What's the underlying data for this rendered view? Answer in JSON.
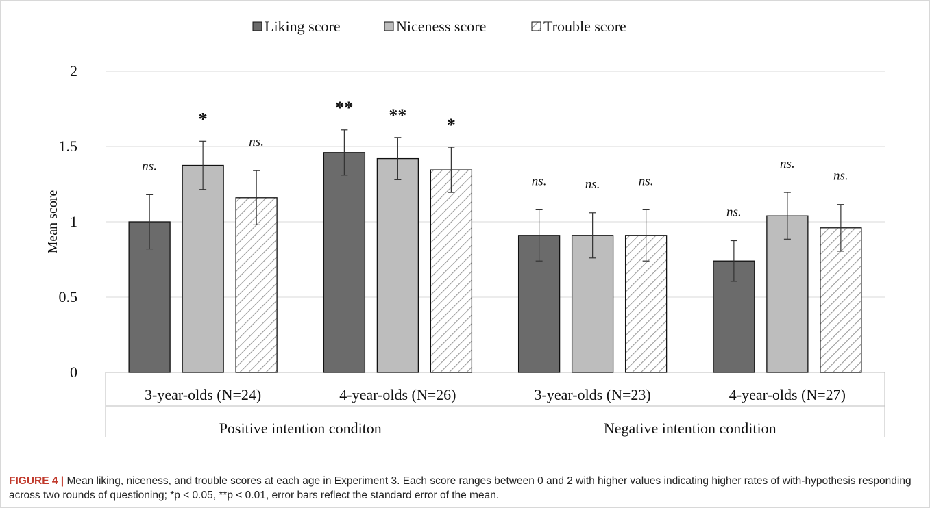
{
  "chart_data": {
    "type": "bar",
    "ylabel": "Mean score",
    "ylim": [
      0,
      2
    ],
    "yticks": [
      "0",
      "0.5",
      "1",
      "1.5",
      "2"
    ],
    "legend_position": "top-center",
    "grid": true,
    "groups": [
      {
        "label": "Positive intention conditon",
        "categories": [
          "3-year-olds (N=24)",
          "4-year-olds (N=26)"
        ]
      },
      {
        "label": "Negative intention condition",
        "categories": [
          "3-year-olds (N=23)",
          "4-year-olds (N=27)"
        ]
      }
    ],
    "categories": [
      "3-year-olds (N=24)",
      "4-year-olds (N=26)",
      "3-year-olds (N=23)",
      "4-year-olds (N=27)"
    ],
    "series": [
      {
        "name": "Liking score",
        "color": "#6b6b6b",
        "pattern": "solid",
        "values": [
          1.0,
          1.46,
          0.91,
          0.74
        ],
        "errors": [
          0.18,
          0.15,
          0.17,
          0.135
        ],
        "annotations": [
          "ns.",
          "**",
          "ns.",
          "ns."
        ]
      },
      {
        "name": "Niceness score",
        "color": "#bdbdbd",
        "pattern": "solid",
        "values": [
          1.375,
          1.42,
          0.91,
          1.04
        ],
        "errors": [
          0.16,
          0.14,
          0.15,
          0.155
        ],
        "annotations": [
          "*",
          "**",
          "ns.",
          "ns."
        ]
      },
      {
        "name": "Trouble score",
        "color": "#ffffff",
        "pattern": "hatch",
        "values": [
          1.16,
          1.345,
          0.91,
          0.96
        ],
        "errors": [
          0.18,
          0.15,
          0.17,
          0.155
        ],
        "annotations": [
          "ns.",
          "*",
          "ns.",
          "ns."
        ]
      }
    ]
  },
  "caption": {
    "label": "FIGURE 4 |",
    "text": " Mean liking, niceness, and trouble scores at each age in Experiment 3. Each score ranges between 0 and 2 with higher values indicating higher rates of with-hypothesis responding across two rounds of questioning; *p < 0.05, **p < 0.01, error bars reflect the standard error of the mean."
  }
}
